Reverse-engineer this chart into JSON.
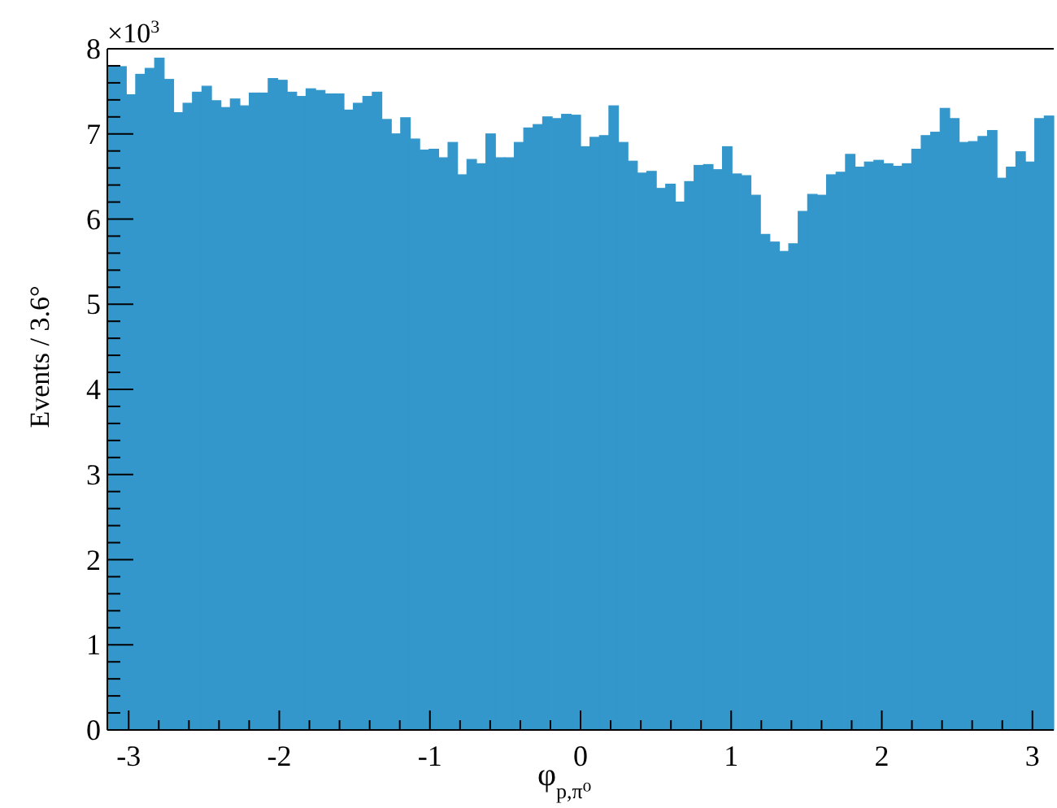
{
  "chart_data": {
    "type": "histogram",
    "xlabel": "φ$_{p,π⁰}$",
    "ylabel": "Events / 3.6°",
    "annotations": [
      "×10$^{3}$"
    ],
    "bins": [
      -3.1416,
      -3.0788,
      -3.0159,
      -2.9531,
      -2.8903,
      -2.8274,
      -2.7646,
      -2.7018,
      -2.6389,
      -2.5761,
      -2.5133,
      -2.4504,
      -2.3876,
      -2.3248,
      -2.2619,
      -2.1991,
      -2.1363,
      -2.0735,
      -2.0106,
      -1.9478,
      -1.885,
      -1.8221,
      -1.7593,
      -1.6965,
      -1.6336,
      -1.5708,
      -1.508,
      -1.4451,
      -1.3823,
      -1.3195,
      -1.2566,
      -1.1938,
      -1.131,
      -1.0681,
      -1.0053,
      -0.9425,
      -0.8796,
      -0.8168,
      -0.754,
      -0.6912,
      -0.6283,
      -0.5655,
      -0.5027,
      -0.4398,
      -0.377,
      -0.3142,
      -0.2513,
      -0.1885,
      -0.1257,
      -0.0628,
      0,
      0.0628,
      0.1257,
      0.1885,
      0.2513,
      0.3142,
      0.377,
      0.4398,
      0.5027,
      0.5655,
      0.6283,
      0.6912,
      0.754,
      0.8168,
      0.8796,
      0.9425,
      1.0053,
      1.0681,
      1.131,
      1.1938,
      1.2566,
      1.3195,
      1.3823,
      1.4451,
      1.508,
      1.5708,
      1.6336,
      1.6965,
      1.7593,
      1.8221,
      1.885,
      1.9478,
      2.0106,
      2.0735,
      2.1363,
      2.1991,
      2.2619,
      2.3248,
      2.3876,
      2.4504,
      2.5133,
      2.5761,
      2.6389,
      2.7018,
      2.7646,
      2.8274,
      2.8903,
      2.9531,
      3.0159,
      3.0788,
      3.1416
    ],
    "values": [
      7.8,
      7.79,
      7.46,
      7.7,
      7.77,
      7.89,
      7.64,
      7.25,
      7.36,
      7.49,
      7.56,
      7.39,
      7.31,
      7.41,
      7.33,
      7.48,
      7.48,
      7.65,
      7.63,
      7.49,
      7.44,
      7.53,
      7.51,
      7.47,
      7.47,
      7.28,
      7.36,
      7.44,
      7.49,
      7.17,
      7.0,
      7.19,
      6.94,
      6.81,
      6.82,
      6.72,
      6.9,
      6.52,
      6.7,
      6.65,
      7.0,
      6.72,
      6.72,
      6.9,
      7.07,
      7.11,
      7.2,
      7.18,
      7.23,
      7.22,
      6.85,
      6.96,
      6.98,
      7.33,
      6.9,
      6.68,
      6.54,
      6.56,
      6.36,
      6.41,
      6.2,
      6.44,
      6.63,
      6.64,
      6.58,
      6.85,
      6.53,
      6.51,
      6.28,
      5.82,
      5.73,
      5.62,
      5.71,
      6.09,
      6.29,
      6.28,
      6.52,
      6.55,
      6.76,
      6.61,
      6.67,
      6.69,
      6.65,
      6.62,
      6.65,
      6.82,
      6.98,
      7.02,
      7.3,
      7.18,
      6.9,
      6.91,
      6.97,
      7.04,
      6.48,
      6.61,
      6.79,
      6.67,
      7.18,
      7.21
    ],
    "color": "#3497cc",
    "xlim": [
      -3.1416,
      3.1416
    ],
    "xticks": [
      -3,
      {
        "value": -2.8,
        "label": null
      },
      {
        "value": -2.6,
        "label": null
      },
      {
        "value": -2.4,
        "label": null
      },
      {
        "value": -2.2,
        "label": null
      },
      -2,
      {
        "value": -1.8,
        "label": null
      },
      {
        "value": -1.6,
        "label": null
      },
      {
        "value": -1.4,
        "label": null
      },
      {
        "value": -1.2,
        "label": null
      },
      -1,
      {
        "value": -0.8,
        "label": null
      },
      {
        "value": -0.6,
        "label": null
      },
      {
        "value": -0.4,
        "label": null
      },
      {
        "value": -0.2,
        "label": null
      },
      0,
      {
        "value": 0.2,
        "label": null
      },
      {
        "value": 0.4,
        "label": null
      },
      {
        "value": 0.6,
        "label": null
      },
      {
        "value": 0.8,
        "label": null
      },
      1,
      {
        "value": 1.2,
        "label": null
      },
      {
        "value": 1.4,
        "label": null
      },
      {
        "value": 1.6,
        "label": null
      },
      {
        "value": 1.8,
        "label": null
      },
      2,
      {
        "value": 2.2,
        "label": null
      },
      {
        "value": 2.4,
        "label": null
      },
      {
        "value": 2.6,
        "label": null
      },
      {
        "value": 2.8,
        "label": null
      },
      3
    ],
    "ylim": [
      0,
      8
    ],
    "yticks": [
      0,
      {
        "value": 0.2,
        "label": null
      },
      {
        "value": 0.4,
        "label": null
      },
      {
        "value": 0.6,
        "label": null
      },
      {
        "value": 0.8,
        "label": null
      },
      1,
      {
        "value": 1.2,
        "label": null
      },
      {
        "value": 1.4,
        "label": null
      },
      {
        "value": 1.6,
        "label": null
      },
      {
        "value": 1.8,
        "label": null
      },
      2,
      {
        "value": 2.2,
        "label": null
      },
      {
        "value": 2.4,
        "label": null
      },
      {
        "value": 2.6,
        "label": null
      },
      {
        "value": 2.8,
        "label": null
      },
      3,
      {
        "value": 3.2,
        "label": null
      },
      {
        "value": 3.4,
        "label": null
      },
      {
        "value": 3.6,
        "label": null
      },
      {
        "value": 3.8,
        "label": null
      },
      4,
      {
        "value": 4.2,
        "label": null
      },
      {
        "value": 4.4,
        "label": null
      },
      {
        "value": 4.6,
        "label": null
      },
      {
        "value": 4.8,
        "label": null
      },
      5,
      {
        "value": 5.2,
        "label": null
      },
      {
        "value": 5.4,
        "label": null
      },
      {
        "value": 5.6,
        "label": null
      },
      {
        "value": 5.8,
        "label": null
      },
      6,
      {
        "value": 6.2,
        "label": null
      },
      {
        "value": 6.4,
        "label": null
      },
      {
        "value": 6.6,
        "label": null
      },
      {
        "value": 6.8,
        "label": null
      },
      7,
      {
        "value": 7.2,
        "label": null
      },
      {
        "value": 7.4,
        "label": null
      },
      {
        "value": 7.6,
        "label": null
      },
      {
        "value": 7.8,
        "label": null
      },
      8
    ],
    "grid": false
  }
}
